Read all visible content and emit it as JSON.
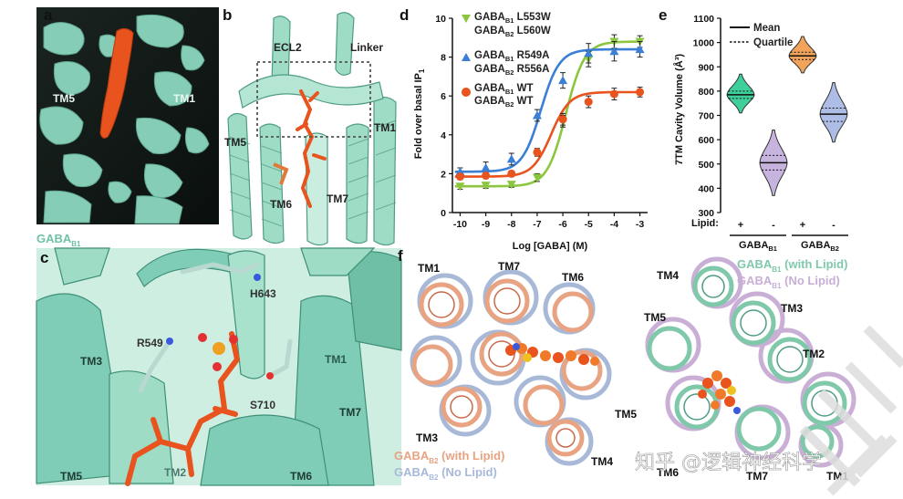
{
  "panels": {
    "a": "a",
    "b": "b",
    "c": "c",
    "d": "d",
    "e": "e",
    "f": "f"
  },
  "panel_a": {
    "tm5": "TM5",
    "tm1": "TM1",
    "caption_main": "GABA",
    "caption_sub": "B1"
  },
  "panel_b": {
    "ecl2": "ECL2",
    "linker": "Linker",
    "tm5": "TM5",
    "tm1": "TM1",
    "tm6": "TM6",
    "tm7": "TM7"
  },
  "panel_c": {
    "h643": "H643",
    "r549": "R549",
    "s710": "S710",
    "tm3": "TM3",
    "tm1": "TM1",
    "tm7": "TM7",
    "tm5": "TM5",
    "tm2": "TM2",
    "tm6": "TM6"
  },
  "panel_d": {
    "legend": [
      {
        "line1_main": "GABA",
        "line1_sub": "B1",
        "line1_rest": " L553W",
        "line2_main": "GABA",
        "line2_sub": "B2",
        "line2_rest": " L560W"
      },
      {
        "line1_main": "GABA",
        "line1_sub": "B1",
        "line1_rest": " R549A",
        "line2_main": "GABA",
        "line2_sub": "B2",
        "line2_rest": " R556A"
      },
      {
        "line1_main": "GABA",
        "line1_sub": "B1",
        "line1_rest": " WT",
        "line2_main": "GABA",
        "line2_sub": "B2",
        "line2_rest": " WT"
      }
    ],
    "ylabel_main": "Fold over basal IP",
    "ylabel_sub": "1",
    "xlabel": "Log [GABA] (M)"
  },
  "panel_e": {
    "legend_mean": "Mean",
    "legend_quartile": "Quartile",
    "ylabel": "7TM Cavity Volume (Å³)",
    "lipid_label": "Lipid:",
    "lipid_signs": [
      "+",
      "-",
      "+",
      "-"
    ],
    "groups": [
      {
        "main": "GABA",
        "sub": "B1"
      },
      {
        "main": "GABA",
        "sub": "B2"
      }
    ]
  },
  "panel_f": {
    "left_labels": {
      "tm1": "TM1",
      "tm7": "TM7",
      "tm6": "TM6",
      "tm3": "TM3",
      "tm5": "TM5",
      "tm4": "TM4"
    },
    "left_legend": [
      {
        "main": "GABA",
        "sub": "B2",
        "rest": " (with Lipid)",
        "color": "#e8a382"
      },
      {
        "main": "GABA",
        "sub": "B2",
        "rest": " (No Lipid)",
        "color": "#a8b9d8"
      }
    ],
    "right_labels": {
      "tm4": "TM4",
      "tm5": "TM5",
      "tm3": "TM3",
      "tm2": "TM2",
      "tm6": "TM6",
      "tm7": "TM7",
      "tm1": "TM1"
    },
    "right_legend": [
      {
        "main": "GABA",
        "sub": "B1",
        "rest": " (with Lipid)",
        "color": "#7fc9aa"
      },
      {
        "main": "GABA",
        "sub": "B1",
        "rest": " (No Lipid)",
        "color": "#c9aed6"
      }
    ]
  },
  "watermark": "知乎 @逻辑神经科学",
  "colors": {
    "teal": "#7fcdb6",
    "teal_dark": "#3a7f6b",
    "orange": "#e8531e",
    "green": "#8cc63f",
    "blue": "#3a7fd5",
    "red": "#e8531e",
    "violin_teal": "#3fcf9a",
    "violin_lilac": "#c7b4de",
    "violin_orange": "#f2a35a",
    "violin_blue": "#aebde6"
  },
  "chart_data": [
    {
      "type": "line",
      "panel": "d",
      "xlabel": "Log [GABA] (M)",
      "ylabel": "Fold over basal IP1",
      "x": [
        -10,
        -9,
        -8,
        -7,
        -6,
        -5,
        -4,
        -3
      ],
      "xlim": [
        -10.3,
        -2.7
      ],
      "ylim": [
        0,
        10
      ],
      "yticks": [
        0,
        2,
        4,
        6,
        8,
        10
      ],
      "series": [
        {
          "name": "GABAB1 L553W / GABAB2 L560W",
          "marker": "triangle-down",
          "color": "#8cc63f",
          "values": [
            1.35,
            1.4,
            1.45,
            1.8,
            4.7,
            7.9,
            8.8,
            8.8
          ],
          "errors": [
            0.15,
            0.15,
            0.15,
            0.2,
            0.3,
            0.4,
            0.35,
            0.3
          ]
        },
        {
          "name": "GABAB1 R549A / GABAB2 R556A",
          "marker": "triangle-up",
          "color": "#3a7fd5",
          "values": [
            2.1,
            2.3,
            2.75,
            5.0,
            6.8,
            8.2,
            8.3,
            8.4
          ],
          "errors": [
            0.2,
            0.3,
            0.3,
            0.3,
            0.4,
            0.5,
            0.5,
            0.4
          ]
        },
        {
          "name": "GABAB1 WT / GABAB2 WT",
          "marker": "circle",
          "color": "#e8531e",
          "values": [
            1.85,
            1.9,
            2.0,
            3.1,
            4.8,
            5.7,
            6.1,
            6.2
          ],
          "errors": [
            0.15,
            0.15,
            0.15,
            0.2,
            0.3,
            0.3,
            0.3,
            0.25
          ]
        }
      ]
    },
    {
      "type": "violin",
      "panel": "e",
      "ylabel": "7TM Cavity Volume (Å³)",
      "ylim": [
        300,
        1100
      ],
      "yticks": [
        300,
        400,
        500,
        600,
        700,
        800,
        900,
        1000,
        1100
      ],
      "categories": [
        "GABAB1 Lipid +",
        "GABAB1 Lipid -",
        "GABAB2 Lipid +",
        "GABAB2 Lipid -"
      ],
      "series": [
        {
          "name": "GABAB1 +",
          "color": "#3fcf9a",
          "min": 710,
          "max": 870,
          "q1": 770,
          "median": 785,
          "q3": 800
        },
        {
          "name": "GABAB1 -",
          "color": "#c7b4de",
          "min": 370,
          "max": 640,
          "q1": 475,
          "median": 505,
          "q3": 535
        },
        {
          "name": "GABAB2 +",
          "color": "#f2a35a",
          "min": 875,
          "max": 1025,
          "q1": 930,
          "median": 945,
          "q3": 960
        },
        {
          "name": "GABAB2 -",
          "color": "#aebde6",
          "min": 590,
          "max": 835,
          "q1": 675,
          "median": 705,
          "q3": 730
        }
      ]
    }
  ]
}
